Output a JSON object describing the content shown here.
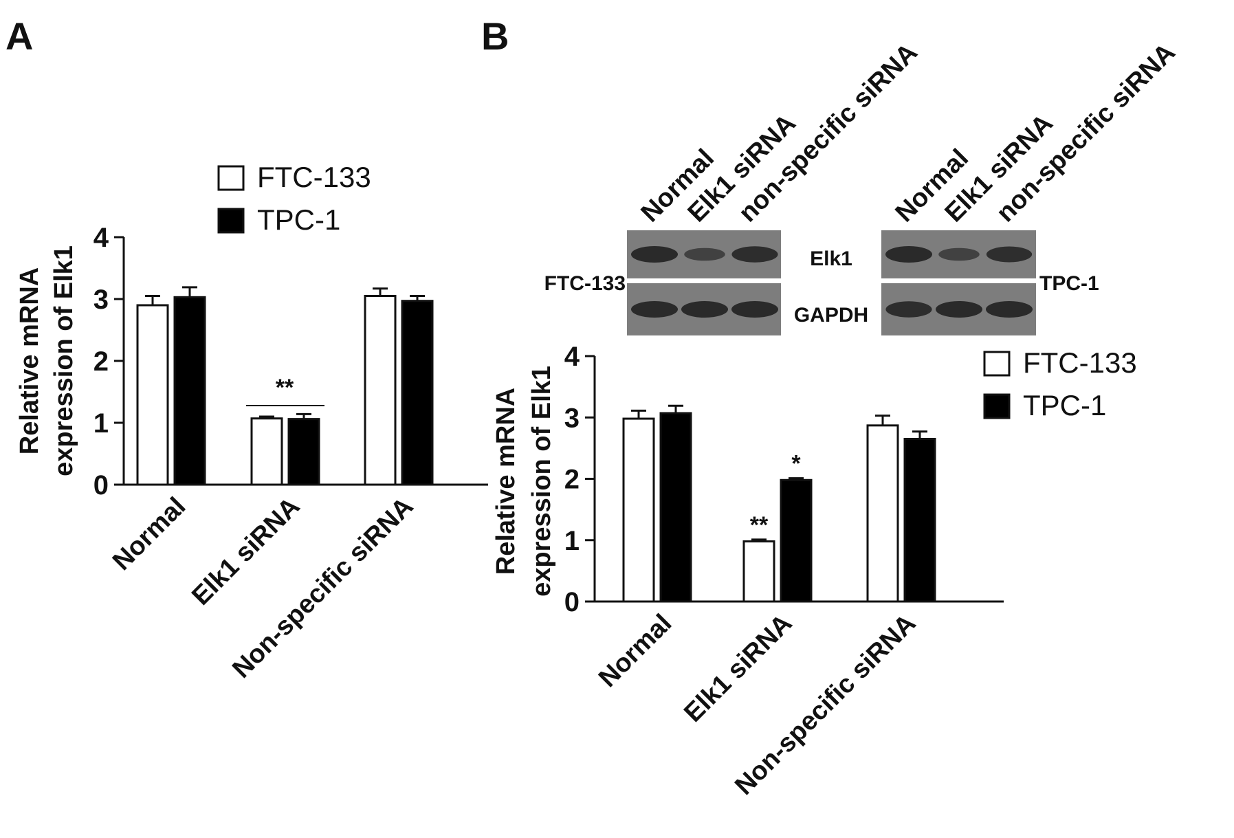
{
  "chart_data": [
    {
      "panel": "A",
      "type": "bar",
      "categories": [
        "Normal",
        "Elk1 siRNA",
        "Non-specific siRNA"
      ],
      "series": [
        {
          "name": "FTC-133",
          "values": [
            2.9,
            1.07,
            3.05
          ],
          "errors": [
            0.15,
            0.03,
            0.12
          ],
          "fill": "#ffffff"
        },
        {
          "name": "TPC-1",
          "values": [
            3.03,
            1.06,
            2.97
          ],
          "errors": [
            0.16,
            0.08,
            0.08
          ],
          "fill": "#000000"
        }
      ],
      "annotations": [
        {
          "category": "Elk1 siRNA",
          "text": "**",
          "type": "bracket"
        }
      ],
      "ylabel": [
        "Relative mRNA",
        "expression of Elk1"
      ],
      "ylim": [
        0,
        4
      ],
      "yticks": [
        "0",
        "1",
        "2",
        "3",
        "4"
      ],
      "legend_placement": "top-right",
      "grid": false
    },
    {
      "panel": "B",
      "type": "bar",
      "categories": [
        "Normal",
        "Elk1 siRNA",
        "Non-specific siRNA"
      ],
      "series": [
        {
          "name": "FTC-133",
          "values": [
            2.98,
            0.98,
            2.87
          ],
          "errors": [
            0.13,
            0.03,
            0.16
          ],
          "fill": "#ffffff"
        },
        {
          "name": "TPC-1",
          "values": [
            3.07,
            1.98,
            2.65
          ],
          "errors": [
            0.12,
            0.03,
            0.12
          ],
          "fill": "#000000"
        }
      ],
      "annotations": [
        {
          "category": "Elk1 siRNA",
          "series": "FTC-133",
          "text": "**"
        },
        {
          "category": "Elk1 siRNA",
          "series": "TPC-1",
          "text": "*"
        }
      ],
      "ylabel": [
        "Relative mRNA",
        "expression of Elk1"
      ],
      "ylim": [
        0,
        4
      ],
      "yticks": [
        "0",
        "1",
        "2",
        "3",
        "4"
      ],
      "legend_placement": "right",
      "grid": false
    }
  ],
  "panel_labels": {
    "a": "A",
    "b": "B"
  },
  "blot": {
    "left_lanes": [
      "Normal",
      "Elk1 siRNA",
      "non-specific siRNA"
    ],
    "right_lanes": [
      "Normal",
      "Elk1 siRNA",
      "non-specific siRNA"
    ],
    "left_cell_line": "FTC-133",
    "right_cell_line": "TPC-1",
    "row_labels": [
      "Elk1",
      "GAPDH"
    ],
    "colors": {
      "membrane": "#7d7d7d",
      "band": "#2a2a2a"
    },
    "band_intensity": {
      "left": {
        "Elk1": [
          1.0,
          0.5,
          0.95
        ],
        "GAPDH": [
          1.0,
          1.0,
          1.0
        ]
      },
      "right": {
        "Elk1": [
          1.0,
          0.5,
          0.9
        ],
        "GAPDH": [
          0.95,
          1.0,
          1.0
        ]
      }
    }
  },
  "colors": {
    "axis": "#111111",
    "fill_open": "#ffffff",
    "fill_solid": "#000000"
  }
}
